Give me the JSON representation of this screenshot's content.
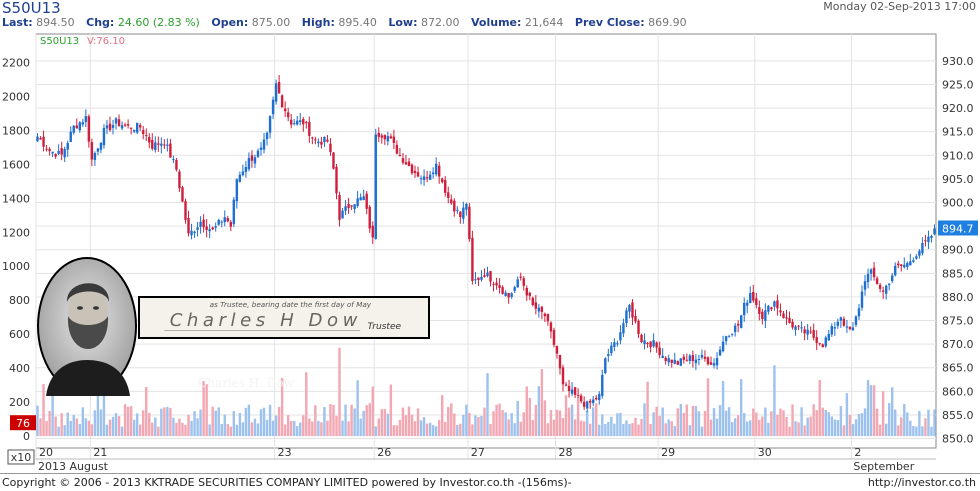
{
  "header": {
    "symbol": "S50U13",
    "datetime": "Monday 02-Sep-2013 17:00",
    "quote": [
      {
        "label": "Last:",
        "value": "894.50"
      },
      {
        "label": "Chg:",
        "value": "24.60 (2.83 %)"
      },
      {
        "label": "Open:",
        "value": "875.00"
      },
      {
        "label": "High:",
        "value": "895.40"
      },
      {
        "label": "Low:",
        "value": "872.00"
      },
      {
        "label": "Volume:",
        "value": "21,644"
      },
      {
        "label": "Prev Close:",
        "value": "869.90"
      }
    ]
  },
  "footer": {
    "copyright": "Copyright © 2006 - 2013 KKTRADE SECURITIES COMPANY LIMITED powered by Investor.co.th -(156ms)-",
    "url": "http://investor.co.th"
  },
  "overlay": {
    "signature_script": "Charles H Dow",
    "signature_line": "as Trustee, bearing date the first day of May",
    "signature_trustee": "Trustee",
    "caption": "Charles H. Dow"
  },
  "chart_data": {
    "type": "candlestick",
    "legend": {
      "symbol": "S50U13",
      "volume_label": "V:76.10"
    },
    "colors": {
      "up": "#1f6fd0",
      "down": "#d01f3c",
      "vol_up": "#9ec2ee",
      "vol_down": "#f2a7b2",
      "last_tag": "#1f7fe0",
      "vol_tag": "#cc0000"
    },
    "right_axis": {
      "min": 848,
      "max": 934,
      "ticks": [
        850,
        855,
        860,
        865,
        870,
        875,
        880,
        885,
        890,
        895,
        900,
        905,
        910,
        915,
        920,
        925,
        930
      ]
    },
    "left_axis": {
      "min": -70,
      "max": 2320,
      "ticks": [
        0,
        200,
        400,
        600,
        800,
        1000,
        1200,
        1400,
        1600,
        1800,
        2000,
        2200
      ]
    },
    "volume_scale": {
      "marker": "76",
      "multiplier": "x10"
    },
    "last_value": "894.7",
    "x_labels": [
      {
        "label": "20",
        "index": 0
      },
      {
        "label": "21",
        "index": 18
      },
      {
        "label": "23",
        "index": 79
      },
      {
        "label": "26",
        "index": 112
      },
      {
        "label": "27",
        "index": 143
      },
      {
        "label": "28",
        "index": 172
      },
      {
        "label": "29",
        "index": 206
      },
      {
        "label": "30",
        "index": 238
      },
      {
        "label": "2",
        "index": 270
      }
    ],
    "month_labels": [
      {
        "label": "2013 August",
        "index": 0
      },
      {
        "label": "September",
        "index": 270
      }
    ],
    "anchors": [
      [
        0,
        914
      ],
      [
        4,
        911
      ],
      [
        8,
        910
      ],
      [
        12,
        916
      ],
      [
        16,
        918
      ],
      [
        18,
        909
      ],
      [
        22,
        915
      ],
      [
        26,
        917
      ],
      [
        30,
        916
      ],
      [
        34,
        916
      ],
      [
        38,
        912
      ],
      [
        42,
        913
      ],
      [
        46,
        907
      ],
      [
        48,
        900
      ],
      [
        50,
        893
      ],
      [
        54,
        896
      ],
      [
        58,
        894
      ],
      [
        62,
        897
      ],
      [
        64,
        895
      ],
      [
        66,
        905
      ],
      [
        70,
        909
      ],
      [
        74,
        911
      ],
      [
        76,
        914
      ],
      [
        79,
        925
      ],
      [
        81,
        921
      ],
      [
        84,
        917
      ],
      [
        88,
        917
      ],
      [
        92,
        913
      ],
      [
        96,
        913
      ],
      [
        98,
        907
      ],
      [
        100,
        897
      ],
      [
        104,
        900
      ],
      [
        108,
        901
      ],
      [
        111,
        892
      ],
      [
        112,
        915
      ],
      [
        116,
        914
      ],
      [
        120,
        910
      ],
      [
        124,
        907
      ],
      [
        128,
        905
      ],
      [
        132,
        908
      ],
      [
        136,
        901
      ],
      [
        140,
        897
      ],
      [
        142,
        900
      ],
      [
        144,
        883
      ],
      [
        148,
        885
      ],
      [
        152,
        883
      ],
      [
        156,
        880
      ],
      [
        160,
        884
      ],
      [
        164,
        878
      ],
      [
        168,
        876
      ],
      [
        172,
        868
      ],
      [
        174,
        861
      ],
      [
        178,
        859
      ],
      [
        182,
        857
      ],
      [
        186,
        859
      ],
      [
        188,
        867
      ],
      [
        192,
        871
      ],
      [
        196,
        878
      ],
      [
        200,
        871
      ],
      [
        204,
        870
      ],
      [
        208,
        867
      ],
      [
        212,
        866
      ],
      [
        216,
        867
      ],
      [
        220,
        867
      ],
      [
        224,
        866
      ],
      [
        228,
        872
      ],
      [
        232,
        874
      ],
      [
        234,
        878
      ],
      [
        236,
        881
      ],
      [
        240,
        876
      ],
      [
        244,
        879
      ],
      [
        248,
        875
      ],
      [
        252,
        873
      ],
      [
        256,
        872
      ],
      [
        260,
        870
      ],
      [
        262,
        872
      ],
      [
        264,
        874
      ],
      [
        266,
        876
      ],
      [
        268,
        873
      ],
      [
        270,
        873
      ],
      [
        272,
        878
      ],
      [
        274,
        884
      ],
      [
        276,
        885
      ],
      [
        278,
        883
      ],
      [
        280,
        881
      ],
      [
        284,
        886
      ],
      [
        288,
        887
      ],
      [
        292,
        890
      ],
      [
        295,
        892
      ],
      [
        297,
        894
      ]
    ],
    "candle_count": 298
  }
}
